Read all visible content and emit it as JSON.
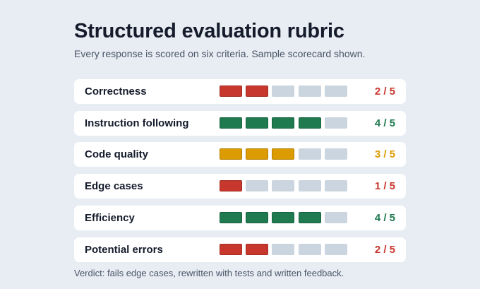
{
  "header": {
    "title": "Structured evaluation rubric",
    "subtitle": "Every response is scored on six criteria. Sample scorecard shown."
  },
  "scale_max": 5,
  "colors": {
    "low": "#c8372d",
    "mid": "#dc9b00",
    "high": "#1f7a4f",
    "empty": "#cbd5df"
  },
  "criteria": [
    {
      "label": "Correctness",
      "score": 2,
      "score_text": "2 / 5",
      "level": "low"
    },
    {
      "label": "Instruction following",
      "score": 4,
      "score_text": "4 / 5",
      "level": "high"
    },
    {
      "label": "Code quality",
      "score": 3,
      "score_text": "3 / 5",
      "level": "mid"
    },
    {
      "label": "Edge cases",
      "score": 1,
      "score_text": "1 / 5",
      "level": "low"
    },
    {
      "label": "Efficiency",
      "score": 4,
      "score_text": "4 / 5",
      "level": "high"
    },
    {
      "label": "Potential errors",
      "score": 2,
      "score_text": "2 / 5",
      "level": "low"
    }
  ],
  "footer": {
    "verdict": "Verdict: fails edge cases, rewritten with tests and written feedback."
  }
}
